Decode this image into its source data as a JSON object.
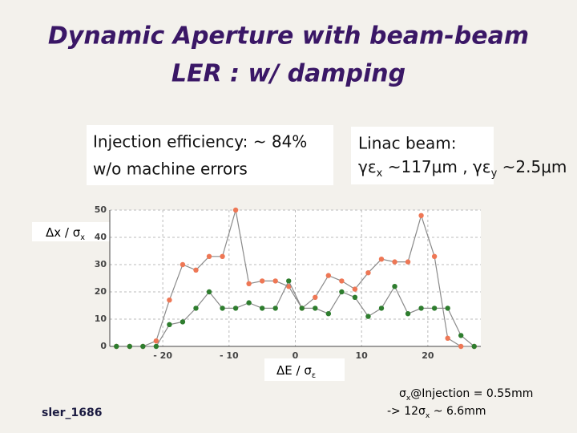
{
  "slide": {
    "title": [
      "Dynamic Aperture with beam-beam",
      "LER : w/ damping"
    ],
    "injection_box": [
      "Injection efficiency: ~ 84%",
      "w/o machine errors"
    ],
    "linac_box": {
      "heading": "Linac beam:",
      "line": [
        {
          "text": "γε"
        },
        {
          "text": "x",
          "sub": true
        },
        {
          "text": " ~117μm , γε"
        },
        {
          "text": "y",
          "sub": true
        },
        {
          "text": " ~2.5μm"
        }
      ]
    },
    "note": [
      [
        {
          "text": "σ"
        },
        {
          "text": "x",
          "sub": true
        },
        {
          "text": "@Injection = 0.55mm"
        }
      ],
      [
        {
          "text": "-> 12σ"
        },
        {
          "text": "x",
          "sub": true
        },
        {
          "text": " ~ 6.6mm"
        }
      ]
    ],
    "footer": "sler_1686"
  },
  "chart_data": {
    "type": "line",
    "x_label": [
      {
        "text": "ΔE / σ"
      },
      {
        "text": "ε",
        "sub": true
      }
    ],
    "y_label": [
      {
        "text": "Δx / σ"
      },
      {
        "text": "x",
        "sub": true
      }
    ],
    "x": [
      -27,
      -25,
      -23,
      -21,
      -19,
      -17,
      -15,
      -13,
      -11,
      -9,
      -7,
      -5,
      -3,
      -1,
      1,
      3,
      5,
      7,
      9,
      11,
      13,
      15,
      17,
      19,
      21,
      23,
      25,
      27
    ],
    "series": [
      {
        "color": "#ee7755",
        "values": [
          0,
          0,
          0,
          2,
          17,
          30,
          28,
          33,
          33,
          50,
          23,
          24,
          24,
          22,
          14,
          18,
          26,
          24,
          21,
          27,
          32,
          31,
          31,
          48,
          33,
          3,
          0,
          0
        ]
      },
      {
        "color": "#2e7d2e",
        "values": [
          0,
          0,
          0,
          0,
          8,
          9,
          14,
          20,
          14,
          14,
          16,
          14,
          14,
          24,
          14,
          14,
          12,
          20,
          18,
          11,
          14,
          22,
          12,
          14,
          14,
          14,
          4,
          0
        ]
      }
    ],
    "line_color": "#8a8a8a",
    "xlim": [
      -28,
      28
    ],
    "ylim": [
      0,
      50
    ],
    "xticks": [
      {
        "value": -20,
        "label": "- 20"
      },
      {
        "value": -10,
        "label": "- 10"
      },
      0,
      10,
      20
    ],
    "yticks": [
      0,
      10,
      20,
      30,
      40,
      50
    ],
    "grid": true
  }
}
